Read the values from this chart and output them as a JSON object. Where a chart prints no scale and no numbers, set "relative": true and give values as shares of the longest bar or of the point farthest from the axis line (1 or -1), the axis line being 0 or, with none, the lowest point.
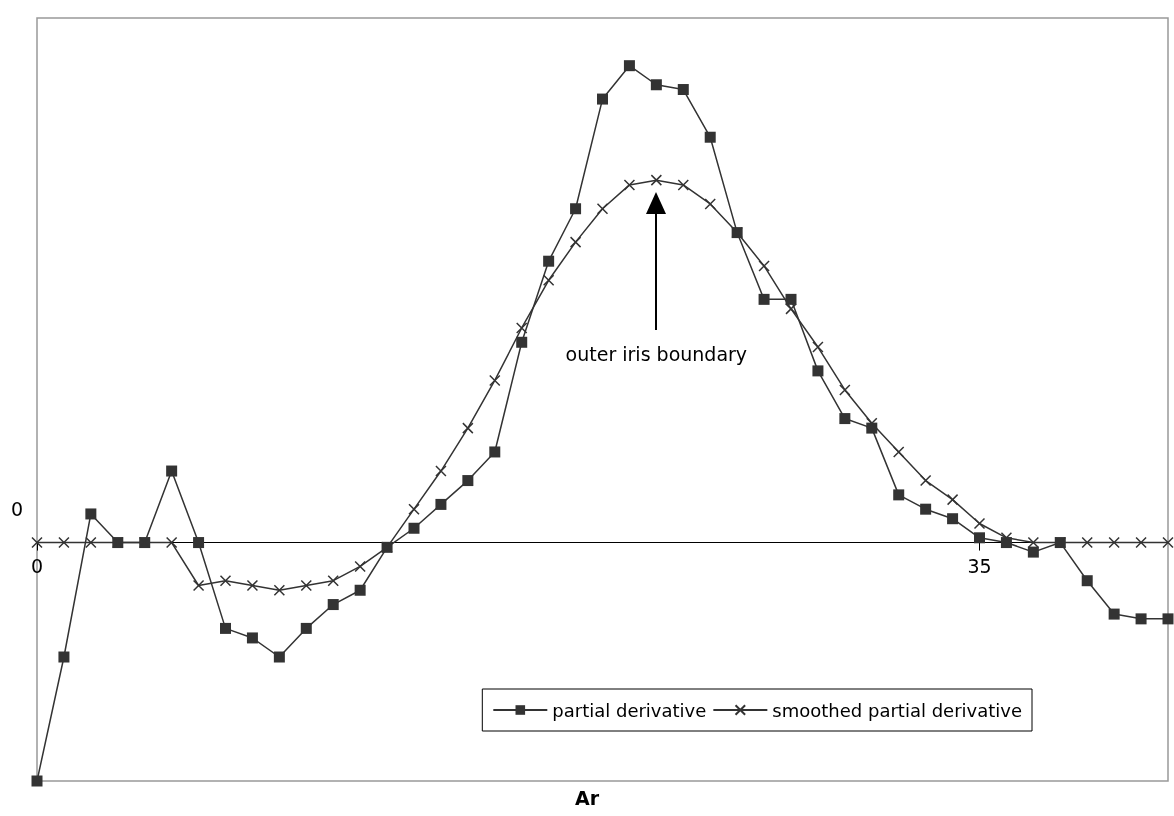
{
  "chart_data": {
    "type": "line",
    "relative": true,
    "xlabel": "Ar",
    "x": [
      0,
      1,
      2,
      3,
      4,
      5,
      6,
      7,
      8,
      9,
      10,
      11,
      12,
      13,
      14,
      15,
      16,
      17,
      18,
      19,
      20,
      21,
      22,
      23,
      24,
      25,
      26,
      27,
      28,
      29,
      30,
      31,
      32,
      33,
      34,
      35,
      36,
      37,
      38,
      39,
      40,
      41,
      42
    ],
    "xlim": [
      0,
      42
    ],
    "xticks": [
      0,
      35
    ],
    "series": [
      {
        "name": "partial derivative",
        "color": "#333333",
        "marker": "square",
        "values": [
          -0.5,
          -0.24,
          0.06,
          0,
          0,
          0.15,
          0,
          -0.18,
          -0.2,
          -0.24,
          -0.18,
          -0.13,
          -0.1,
          -0.01,
          0.03,
          0.08,
          0.13,
          0.19,
          0.42,
          0.59,
          0.7,
          0.93,
          1,
          0.96,
          0.95,
          0.85,
          0.65,
          0.51,
          0.51,
          0.36,
          0.26,
          0.24,
          0.1,
          0.07,
          0.05,
          0.01,
          0,
          -0.02,
          0,
          -0.08,
          -0.15,
          -0.16,
          -0.16
        ]
      },
      {
        "name": "smoothed partial derivative",
        "color": "#333333",
        "marker": "cross",
        "values": [
          0,
          0,
          0,
          0,
          0,
          0,
          -0.09,
          -0.08,
          -0.09,
          -0.1,
          -0.09,
          -0.08,
          -0.05,
          -0.01,
          0.07,
          0.15,
          0.24,
          0.34,
          0.45,
          0.55,
          0.63,
          0.7,
          0.75,
          0.76,
          0.75,
          0.71,
          0.65,
          0.58,
          0.49,
          0.41,
          0.32,
          0.25,
          0.19,
          0.13,
          0.09,
          0.04,
          0.01,
          0,
          0,
          0,
          0,
          0,
          0
        ]
      }
    ],
    "annotations": [
      "outer iris boundary",
      "0"
    ],
    "legend": "bottom right",
    "grid": false,
    "line_style": "solid"
  }
}
